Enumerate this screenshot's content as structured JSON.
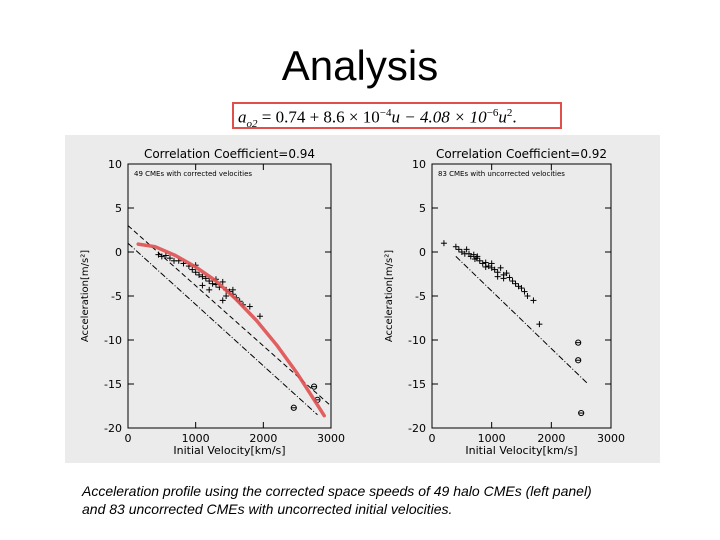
{
  "slide": {
    "title": "Analysis",
    "formula": {
      "lhs": "a",
      "lhs_sub": "o2",
      "rhs_a": " = 0.74 + 8.6 × 10",
      "exp1": "−4",
      "rhs_b": "u − 4.08 × 10",
      "exp2": "−6",
      "rhs_c": "u",
      "exp3": "2",
      "rhs_d": "."
    },
    "caption_line1": "Acceleration profile using the corrected space speeds of 49 halo CMEs (left panel)",
    "caption_line2": "and 83 uncorrected CMEs with uncorrected initial velocities."
  },
  "colors": {
    "fit_curve": "#e05050",
    "figure_bg": "#ebebeb",
    "formula_border": "#e0504a"
  },
  "chart_data": [
    {
      "type": "scatter",
      "title": "Correlation Coefficient=0.94",
      "annotation": "49 CMEs with corrected velocities",
      "xlabel": "Initial Velocity[km/s]",
      "ylabel": "Acceleration[m/s²]",
      "xlim": [
        0,
        3000
      ],
      "ylim": [
        -20,
        10
      ],
      "xticks": [
        0,
        1000,
        2000,
        3000
      ],
      "yticks": [
        10,
        5,
        0,
        -5,
        -10,
        -15,
        -20
      ],
      "grid": false,
      "points": [
        {
          "x": 450,
          "y": -0.3
        },
        {
          "x": 500,
          "y": -0.5
        },
        {
          "x": 560,
          "y": -0.4
        },
        {
          "x": 620,
          "y": -0.7
        },
        {
          "x": 680,
          "y": -1.0
        },
        {
          "x": 750,
          "y": -1.0
        },
        {
          "x": 820,
          "y": -1.3
        },
        {
          "x": 900,
          "y": -1.6
        },
        {
          "x": 950,
          "y": -2.0
        },
        {
          "x": 1000,
          "y": -2.3
        },
        {
          "x": 1050,
          "y": -2.6
        },
        {
          "x": 1100,
          "y": -2.8
        },
        {
          "x": 1150,
          "y": -3.0
        },
        {
          "x": 1200,
          "y": -3.3
        },
        {
          "x": 1250,
          "y": -3.6
        },
        {
          "x": 1300,
          "y": -3.7
        },
        {
          "x": 1350,
          "y": -4.0
        },
        {
          "x": 1400,
          "y": -3.4
        },
        {
          "x": 1450,
          "y": -4.3
        },
        {
          "x": 1500,
          "y": -4.5
        },
        {
          "x": 1550,
          "y": -4.8
        },
        {
          "x": 1600,
          "y": -5.2
        },
        {
          "x": 1650,
          "y": -5.6
        },
        {
          "x": 1700,
          "y": -6.0
        },
        {
          "x": 1800,
          "y": -6.2
        },
        {
          "x": 1450,
          "y": -5.0
        },
        {
          "x": 1400,
          "y": -5.5
        },
        {
          "x": 1200,
          "y": -4.3
        },
        {
          "x": 1100,
          "y": -3.8
        },
        {
          "x": 1550,
          "y": -4.3
        },
        {
          "x": 1000,
          "y": -1.5
        },
        {
          "x": 1300,
          "y": -3.1
        },
        {
          "x": 1950,
          "y": -7.3
        },
        {
          "x": 2450,
          "y": -17.7
        },
        {
          "x": 2750,
          "y": -15.3
        },
        {
          "x": 2800,
          "y": -16.8
        }
      ],
      "fit_line": [
        [
          0,
          1.0
        ],
        [
          2800,
          -18.5
        ]
      ],
      "fit_line_dashed": [
        [
          0,
          3.0
        ],
        [
          3000,
          -17.5
        ]
      ],
      "fit_curve": [
        [
          150,
          0.9
        ],
        [
          400,
          0.6
        ],
        [
          700,
          -0.4
        ],
        [
          1000,
          -1.7
        ],
        [
          1300,
          -3.3
        ],
        [
          1600,
          -5.4
        ],
        [
          1900,
          -7.8
        ],
        [
          2200,
          -10.6
        ],
        [
          2500,
          -13.8
        ],
        [
          2800,
          -17.4
        ],
        [
          2900,
          -18.6
        ]
      ]
    },
    {
      "type": "scatter",
      "title": "Correlation Coefficient=0.92",
      "annotation": "83 CMEs with uncorrected velocities",
      "xlabel": "Initial Velocity[km/s]",
      "ylabel": "Acceleration[m/s²]",
      "xlim": [
        0,
        3000
      ],
      "ylim": [
        -20,
        10
      ],
      "xticks": [
        0,
        1000,
        2000,
        3000
      ],
      "yticks": [
        10,
        5,
        0,
        -5,
        -10,
        -15,
        -20
      ],
      "grid": false,
      "points": [
        {
          "x": 200,
          "y": 1.0
        },
        {
          "x": 400,
          "y": 0.6
        },
        {
          "x": 450,
          "y": 0.3
        },
        {
          "x": 500,
          "y": 0.0
        },
        {
          "x": 550,
          "y": -0.2
        },
        {
          "x": 580,
          "y": 0.3
        },
        {
          "x": 620,
          "y": -0.2
        },
        {
          "x": 650,
          "y": -0.5
        },
        {
          "x": 700,
          "y": -0.3
        },
        {
          "x": 720,
          "y": -0.8
        },
        {
          "x": 760,
          "y": -0.5
        },
        {
          "x": 800,
          "y": -1.0
        },
        {
          "x": 850,
          "y": -1.3
        },
        {
          "x": 900,
          "y": -1.2
        },
        {
          "x": 950,
          "y": -1.6
        },
        {
          "x": 1000,
          "y": -1.8
        },
        {
          "x": 1050,
          "y": -2.0
        },
        {
          "x": 1100,
          "y": -2.3
        },
        {
          "x": 1150,
          "y": -1.8
        },
        {
          "x": 1200,
          "y": -2.6
        },
        {
          "x": 1250,
          "y": -2.4
        },
        {
          "x": 1300,
          "y": -2.9
        },
        {
          "x": 1350,
          "y": -3.3
        },
        {
          "x": 1400,
          "y": -3.6
        },
        {
          "x": 1450,
          "y": -3.9
        },
        {
          "x": 1500,
          "y": -4.1
        },
        {
          "x": 1550,
          "y": -4.5
        },
        {
          "x": 1600,
          "y": -5.0
        },
        {
          "x": 1700,
          "y": -5.5
        },
        {
          "x": 1800,
          "y": -8.2
        },
        {
          "x": 900,
          "y": -1.7
        },
        {
          "x": 1000,
          "y": -1.3
        },
        {
          "x": 1100,
          "y": -2.8
        },
        {
          "x": 1200,
          "y": -3.0
        },
        {
          "x": 750,
          "y": -0.7
        },
        {
          "x": 2450,
          "y": -10.3
        },
        {
          "x": 2450,
          "y": -12.3
        },
        {
          "x": 2500,
          "y": -18.3
        }
      ],
      "fit_line": [
        [
          400,
          -0.5
        ],
        [
          2600,
          -14.9
        ]
      ]
    }
  ]
}
